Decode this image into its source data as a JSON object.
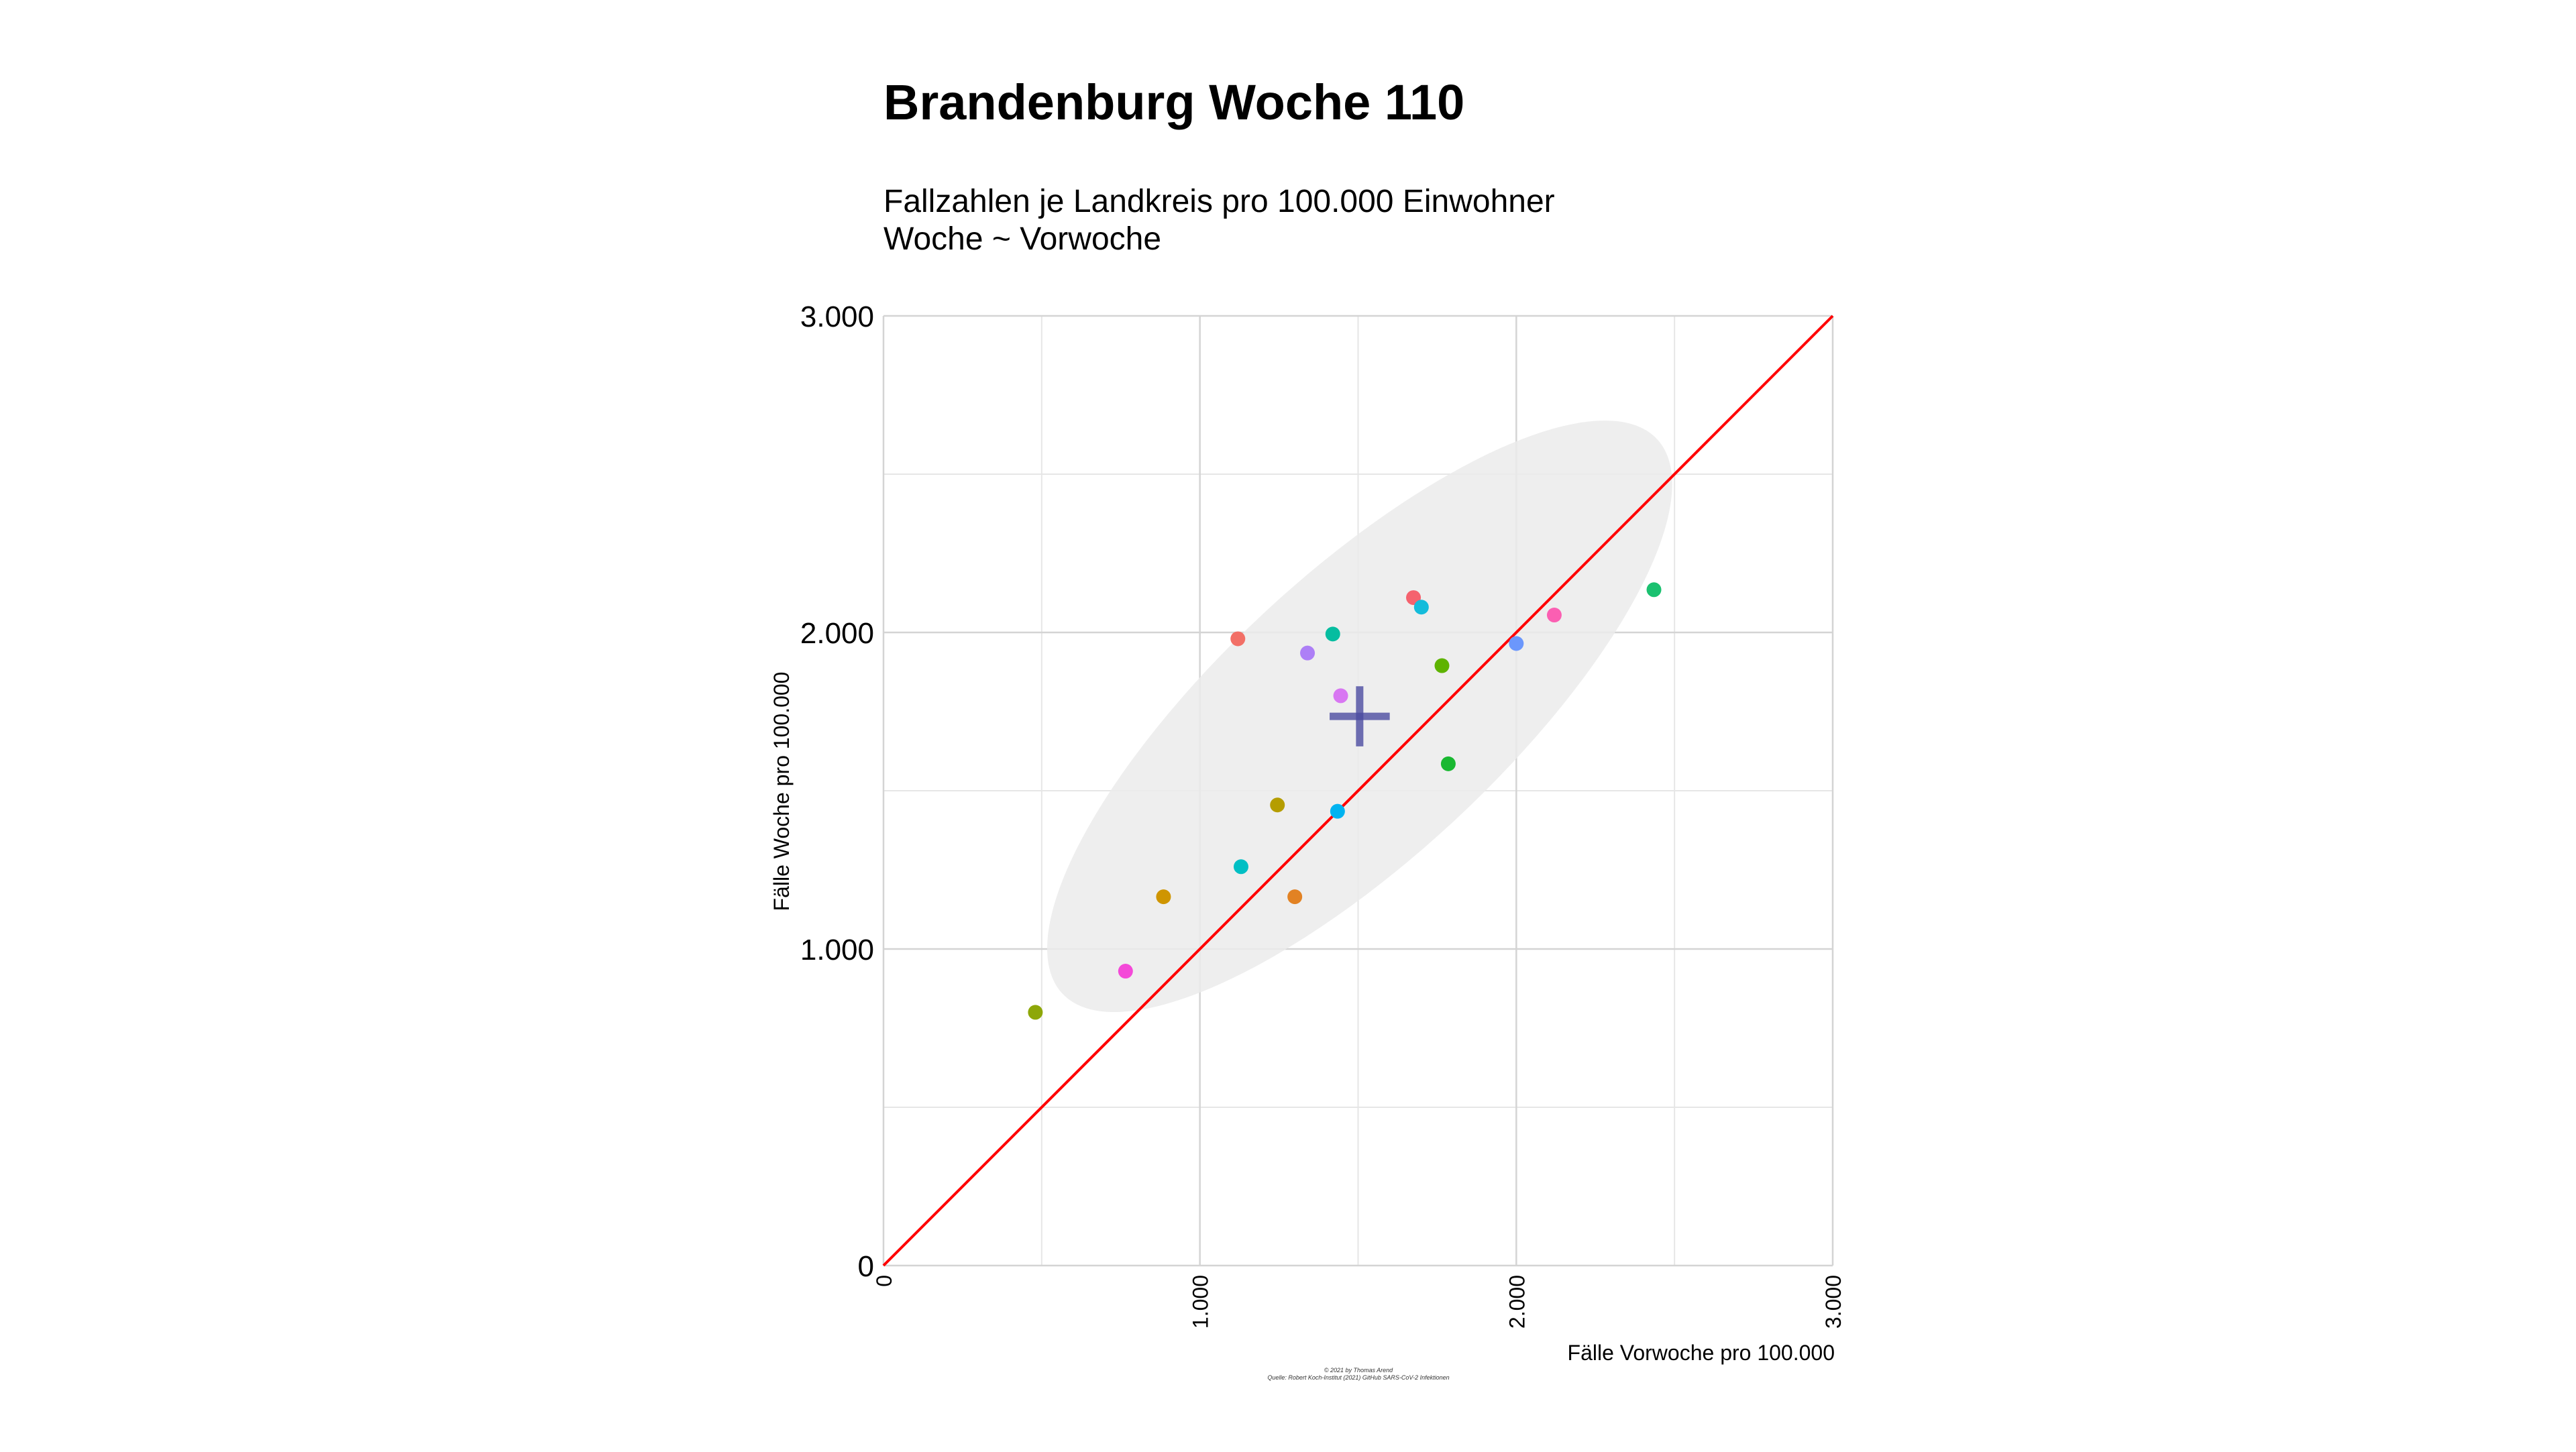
{
  "chart_data": {
    "type": "scatter",
    "title": "Brandenburg Woche 110",
    "subtitle_lines": [
      "Fallzahlen je Landkreis pro 100.000 Einwohner",
      "Woche ~ Vorwoche"
    ],
    "xlabel": "Fälle Vorwoche pro 100.000",
    "ylabel": "Fälle Woche pro 100.000",
    "xlim": [
      0,
      3000
    ],
    "ylim": [
      0,
      3000
    ],
    "x_ticks": [
      {
        "value": 0,
        "label": "0"
      },
      {
        "value": 1000,
        "label": "1.000"
      },
      {
        "value": 2000,
        "label": "2.000"
      },
      {
        "value": 3000,
        "label": "3.000"
      }
    ],
    "y_ticks": [
      {
        "value": 0,
        "label": "0"
      },
      {
        "value": 1000,
        "label": "1.000"
      },
      {
        "value": 2000,
        "label": "2.000"
      },
      {
        "value": 3000,
        "label": "3.000"
      }
    ],
    "minor_gridlines": [
      500,
      1500,
      2500
    ],
    "grid": true,
    "legend": "none",
    "reference_line": {
      "from": [
        0,
        0
      ],
      "to": [
        3000,
        3000
      ],
      "color": "#ff0000"
    },
    "ellipse": {
      "cx": 1505,
      "cy": 1735,
      "rx": 1285,
      "ry": 445,
      "angle_deg": -43,
      "color": "#ebebeb"
    },
    "mean_marker": {
      "x": 1505,
      "y": 1735,
      "half_width": 95,
      "half_height": 95,
      "color": "#4b4ba0"
    },
    "points": [
      {
        "x": 480,
        "y": 800,
        "color": "#8ea709"
      },
      {
        "x": 765,
        "y": 930,
        "color": "#f449d8"
      },
      {
        "x": 885,
        "y": 1165,
        "color": "#cf9500"
      },
      {
        "x": 1120,
        "y": 1980,
        "color": "#f26f66"
      },
      {
        "x": 1130,
        "y": 1260,
        "color": "#00bfc4"
      },
      {
        "x": 1245,
        "y": 1455,
        "color": "#b59d00"
      },
      {
        "x": 1300,
        "y": 1165,
        "color": "#e28223"
      },
      {
        "x": 1340,
        "y": 1935,
        "color": "#ad7ff6"
      },
      {
        "x": 1420,
        "y": 1995,
        "color": "#06bda0"
      },
      {
        "x": 1435,
        "y": 1435,
        "color": "#00b3f0"
      },
      {
        "x": 1445,
        "y": 1800,
        "color": "#d877f2"
      },
      {
        "x": 1675,
        "y": 2110,
        "color": "#f5626e"
      },
      {
        "x": 1700,
        "y": 2080,
        "color": "#14bcdb"
      },
      {
        "x": 1765,
        "y": 1895,
        "color": "#5eb300"
      },
      {
        "x": 1785,
        "y": 1585,
        "color": "#19b831"
      },
      {
        "x": 2000,
        "y": 1965,
        "color": "#6b97fc"
      },
      {
        "x": 2120,
        "y": 2055,
        "color": "#fb5fb2"
      },
      {
        "x": 2435,
        "y": 2135,
        "color": "#1bc170"
      }
    ]
  },
  "footer": {
    "credit": "© 2021 by Thomas Arend",
    "source": "Quelle: Robert Koch-Institut (2021) GitHub SARS-CoV-2 Infektionen"
  }
}
